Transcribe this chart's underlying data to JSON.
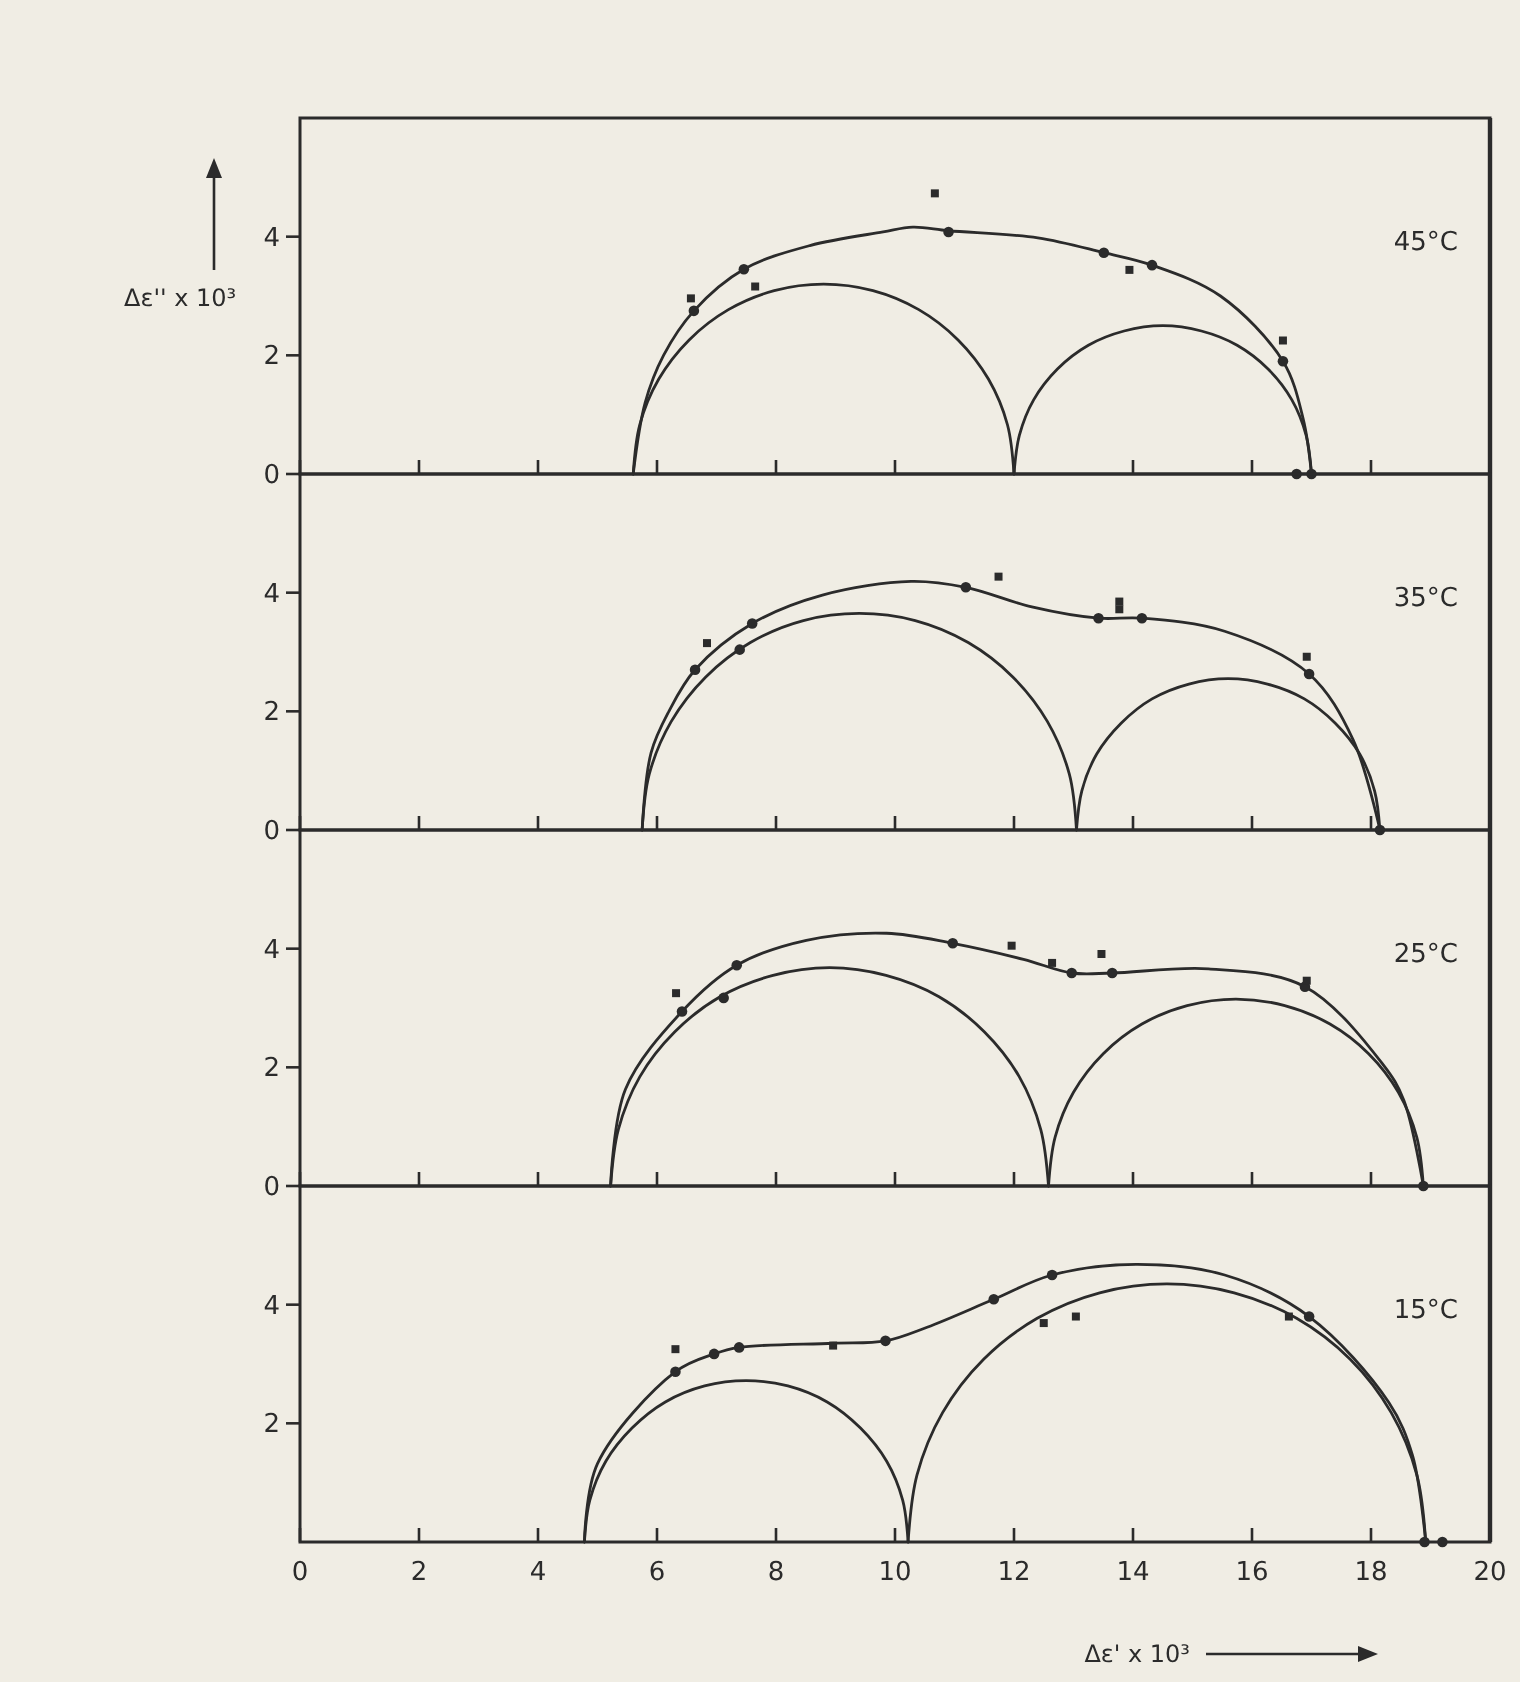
{
  "chart_data": [
    {
      "type": "line",
      "title": "45°C",
      "ylabel": "Δε'' x 10³",
      "xlim": [
        0,
        20
      ],
      "xticks": [
        0,
        2,
        4,
        6,
        8,
        10,
        12,
        14,
        16,
        18,
        20
      ],
      "ylim": [
        0,
        6
      ],
      "yticks": [
        0,
        2,
        4
      ],
      "tick_labels": "y",
      "series": [
        {
          "type": "line",
          "color": "#2b2b2b",
          "x": [
            5.6,
            5.8,
            6.11,
            6.62,
            7.46,
            8.57,
            9.8,
            10.3,
            10.9,
            12.4,
            13.51,
            14.32,
            15.47,
            16.52,
            16.86,
            17.0
          ],
          "values": [
            0,
            1.2,
            2.0,
            2.75,
            3.45,
            3.85,
            4.08,
            4.16,
            4.1,
            3.98,
            3.73,
            3.52,
            3.0,
            1.9,
            0.93,
            0
          ]
        },
        {
          "type": "line",
          "color": "#2b2b2b",
          "x": [
            5.6,
            5.71,
            6.03,
            6.54,
            7.2,
            7.97,
            8.8,
            9.63,
            10.4,
            11.06,
            11.57,
            11.89,
            12.0
          ],
          "values": [
            0,
            0.83,
            1.6,
            2.26,
            2.77,
            3.09,
            3.2,
            3.09,
            2.77,
            2.26,
            1.6,
            0.83,
            0
          ]
        },
        {
          "type": "line",
          "color": "#2b2b2b",
          "x": [
            12.0,
            12.09,
            12.33,
            12.73,
            13.25,
            13.85,
            14.5,
            15.15,
            15.75,
            16.27,
            16.67,
            16.91,
            17.0
          ],
          "values": [
            0,
            0.65,
            1.25,
            1.77,
            2.17,
            2.41,
            2.5,
            2.41,
            2.17,
            1.77,
            1.25,
            0.65,
            0
          ]
        },
        {
          "type": "scatter",
          "marker": "circle",
          "color": "#2b2b2b",
          "x": [
            6.62,
            7.46,
            10.9,
            13.51,
            14.32,
            16.52,
            16.75,
            17.0
          ],
          "values": [
            2.75,
            3.45,
            4.08,
            3.73,
            3.52,
            1.9,
            0,
            0
          ]
        },
        {
          "type": "scatter",
          "marker": "square",
          "color": "#2b2b2b",
          "x": [
            6.57,
            7.65,
            10.67,
            13.94,
            16.52
          ],
          "values": [
            2.96,
            3.16,
            4.73,
            3.44,
            2.25
          ]
        }
      ]
    },
    {
      "type": "line",
      "title": "35°C",
      "xlim": [
        0,
        20
      ],
      "xticks": [
        0,
        2,
        4,
        6,
        8,
        10,
        12,
        14,
        16,
        18,
        20
      ],
      "ylim": [
        0,
        6
      ],
      "yticks": [
        0,
        2,
        4
      ],
      "tick_labels": "y",
      "series": [
        {
          "type": "line",
          "color": "#2b2b2b",
          "x": [
            5.75,
            5.9,
            6.2,
            6.64,
            7.6,
            8.78,
            10.27,
            11.19,
            12.3,
            13.42,
            14.15,
            15.54,
            16.96,
            17.7,
            18.15
          ],
          "values": [
            0,
            1.3,
            2.0,
            2.7,
            3.48,
            3.96,
            4.19,
            4.09,
            3.76,
            3.57,
            3.57,
            3.35,
            2.63,
            1.52,
            0
          ]
        },
        {
          "type": "line",
          "color": "#2b2b2b",
          "x": [
            5.75,
            5.87,
            6.24,
            6.82,
            7.57,
            8.46,
            9.4,
            10.34,
            11.23,
            11.98,
            12.56,
            12.93,
            13.05
          ],
          "values": [
            0,
            0.94,
            1.83,
            2.58,
            3.16,
            3.53,
            3.65,
            3.53,
            3.16,
            2.58,
            1.83,
            0.94,
            0
          ]
        },
        {
          "type": "line",
          "color": "#2b2b2b",
          "x": [
            13.05,
            13.14,
            13.39,
            13.8,
            14.32,
            14.94,
            15.6,
            16.26,
            16.88,
            17.4,
            17.81,
            18.06,
            18.15
          ],
          "values": [
            0,
            0.66,
            1.28,
            1.8,
            2.21,
            2.46,
            2.55,
            2.46,
            2.21,
            1.8,
            1.28,
            0.66,
            0
          ]
        },
        {
          "type": "scatter",
          "marker": "circle",
          "color": "#2b2b2b",
          "x": [
            6.64,
            7.39,
            7.6,
            11.19,
            13.42,
            14.15,
            16.96,
            18.15
          ],
          "values": [
            2.7,
            3.04,
            3.48,
            4.09,
            3.57,
            3.57,
            2.63,
            0
          ]
        },
        {
          "type": "scatter",
          "marker": "square",
          "color": "#2b2b2b",
          "x": [
            6.84,
            11.74,
            13.77,
            13.77,
            16.92
          ],
          "values": [
            3.15,
            4.27,
            3.85,
            3.72,
            2.92
          ]
        }
      ]
    },
    {
      "type": "line",
      "title": "25°C",
      "xlim": [
        0,
        20
      ],
      "xticks": [
        0,
        2,
        4,
        6,
        8,
        10,
        12,
        14,
        16,
        18,
        20
      ],
      "ylim": [
        0,
        6
      ],
      "yticks": [
        0,
        2,
        4
      ],
      "tick_labels": "y",
      "series": [
        {
          "type": "line",
          "color": "#2b2b2b",
          "x": [
            5.22,
            5.47,
            6.42,
            7.34,
            8.51,
            9.86,
            10.97,
            12.16,
            12.97,
            13.65,
            15.27,
            16.89,
            18.2,
            18.55,
            18.88
          ],
          "values": [
            0,
            1.63,
            2.94,
            3.72,
            4.14,
            4.26,
            4.09,
            3.82,
            3.59,
            3.59,
            3.66,
            3.36,
            2.05,
            1.45,
            0
          ]
        },
        {
          "type": "line",
          "color": "#2b2b2b",
          "x": [
            5.22,
            5.35,
            5.71,
            6.3,
            7.06,
            7.95,
            8.9,
            9.85,
            10.74,
            11.5,
            12.09,
            12.45,
            12.58
          ],
          "values": [
            0,
            0.95,
            1.84,
            2.6,
            3.19,
            3.55,
            3.68,
            3.55,
            3.19,
            2.6,
            1.84,
            0.95,
            0
          ]
        },
        {
          "type": "line",
          "color": "#2b2b2b",
          "x": [
            12.58,
            12.69,
            13.0,
            13.5,
            14.15,
            14.91,
            15.73,
            16.55,
            17.31,
            17.96,
            18.46,
            18.77,
            18.88
          ],
          "values": [
            0,
            0.82,
            1.58,
            2.23,
            2.73,
            3.04,
            3.15,
            3.04,
            2.73,
            2.23,
            1.58,
            0.82,
            0
          ]
        },
        {
          "type": "scatter",
          "marker": "circle",
          "color": "#2b2b2b",
          "x": [
            6.42,
            7.12,
            7.34,
            10.97,
            12.97,
            13.65,
            16.89,
            18.88
          ],
          "values": [
            2.94,
            3.17,
            3.72,
            4.09,
            3.59,
            3.59,
            3.36,
            0
          ]
        },
        {
          "type": "scatter",
          "marker": "square",
          "color": "#2b2b2b",
          "x": [
            6.32,
            11.96,
            12.64,
            13.47,
            16.92
          ],
          "values": [
            3.25,
            4.05,
            3.76,
            3.91,
            3.46
          ]
        }
      ]
    },
    {
      "type": "line",
      "title": "15°C",
      "xlabel": "Δε' x 10³",
      "xlim": [
        0,
        20
      ],
      "xticks": [
        0,
        2,
        4,
        6,
        8,
        10,
        12,
        14,
        16,
        18,
        20
      ],
      "ylim": [
        0,
        6
      ],
      "yticks": [
        2,
        4
      ],
      "series": [
        {
          "type": "line",
          "color": "#2b2b2b",
          "x": [
            4.78,
            5.0,
            6.31,
            6.96,
            7.38,
            8.96,
            9.84,
            10.54,
            11.66,
            12.64,
            14.05,
            15.54,
            16.96,
            18.3,
            18.7,
            18.92
          ],
          "values": [
            0,
            1.32,
            2.87,
            3.17,
            3.28,
            3.35,
            3.39,
            3.62,
            4.09,
            4.5,
            4.68,
            4.5,
            3.8,
            2.35,
            1.45,
            0
          ]
        },
        {
          "type": "line",
          "color": "#2b2b2b",
          "x": [
            4.78,
            4.87,
            5.14,
            5.58,
            6.14,
            6.8,
            7.5,
            8.2,
            8.86,
            9.42,
            9.86,
            10.13,
            10.22
          ],
          "values": [
            0,
            0.7,
            1.36,
            1.92,
            2.36,
            2.63,
            2.72,
            2.63,
            2.36,
            1.92,
            1.36,
            0.7,
            0
          ]
        },
        {
          "type": "line",
          "color": "#2b2b2b",
          "x": [
            10.22,
            10.37,
            10.8,
            11.49,
            12.39,
            13.44,
            14.57,
            15.7,
            16.75,
            17.65,
            18.34,
            18.77,
            18.92
          ],
          "values": [
            0,
            1.13,
            2.18,
            3.08,
            3.77,
            4.2,
            4.35,
            4.2,
            3.77,
            3.08,
            2.18,
            1.13,
            0
          ]
        },
        {
          "type": "scatter",
          "marker": "circle",
          "color": "#2b2b2b",
          "x": [
            6.31,
            6.96,
            7.38,
            9.84,
            11.66,
            12.64,
            16.96,
            18.9,
            19.2
          ],
          "values": [
            2.87,
            3.17,
            3.28,
            3.39,
            4.09,
            4.5,
            3.8,
            0,
            0
          ]
        },
        {
          "type": "scatter",
          "marker": "square",
          "color": "#2b2b2b",
          "x": [
            6.31,
            8.96,
            12.5,
            13.04,
            16.62
          ],
          "values": [
            3.25,
            3.31,
            3.69,
            3.8,
            3.8
          ]
        }
      ]
    }
  ]
}
